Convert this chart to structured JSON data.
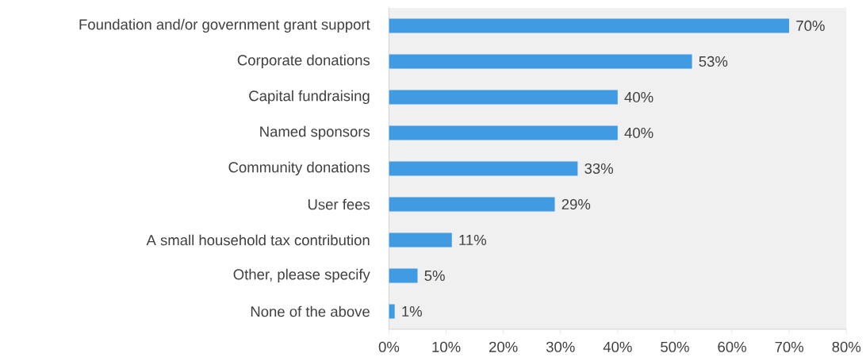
{
  "chart_data": {
    "type": "bar",
    "orientation": "horizontal",
    "categories": [
      "Foundation and/or government grant support",
      "Corporate donations",
      "Capital fundraising",
      "Named sponsors",
      "Community donations",
      "User fees",
      "A small household tax contribution",
      "Other, please specify",
      "None of the above"
    ],
    "values": [
      70,
      53,
      40,
      40,
      33,
      29,
      11,
      5,
      1
    ],
    "value_labels": [
      "70%",
      "53%",
      "40%",
      "40%",
      "33%",
      "29%",
      "11%",
      "5%",
      "1%"
    ],
    "color": "#419be3",
    "xlim": [
      0,
      80
    ],
    "xticks": [
      {
        "value": 0,
        "label": "0%"
      },
      {
        "value": 10,
        "label": "10%"
      },
      {
        "value": 20,
        "label": "20%"
      },
      {
        "value": 30,
        "label": "30%"
      },
      {
        "value": 40,
        "label": "40%"
      },
      {
        "value": 50,
        "label": "50%"
      },
      {
        "value": 60,
        "label": "60%"
      },
      {
        "value": 70,
        "label": "70%"
      },
      {
        "value": 80,
        "label": "80%"
      }
    ],
    "grid": false
  }
}
